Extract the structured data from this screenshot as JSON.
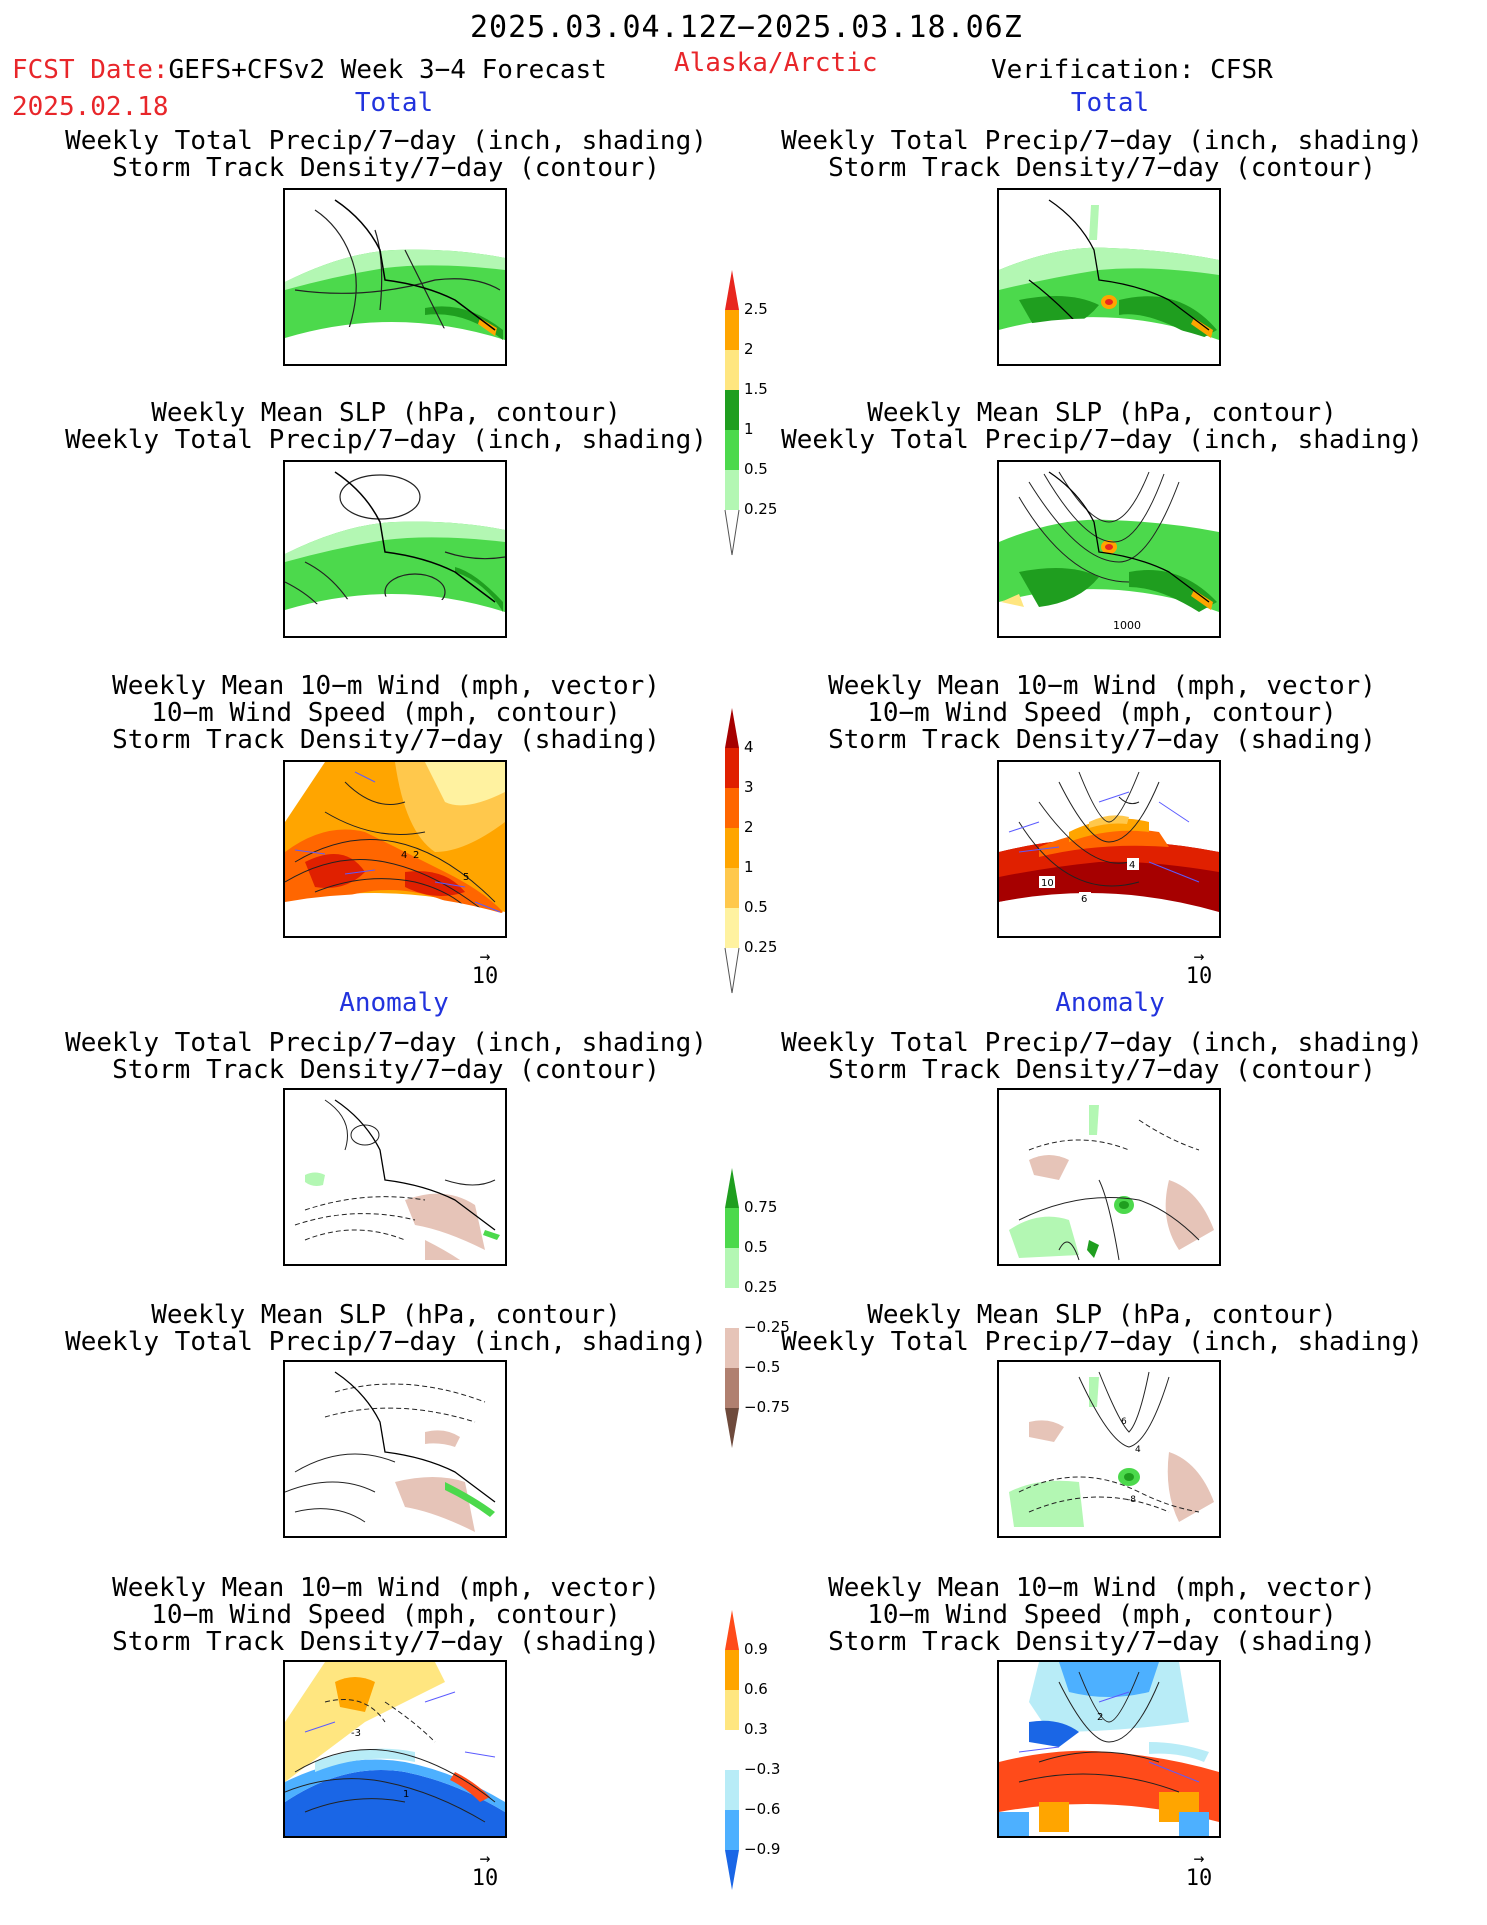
{
  "header": {
    "date_range": "2025.03.04.12Z−2025.03.18.06Z",
    "fcst_label": "FCST Date:",
    "fcst_date": "2025.02.18",
    "model": "GEFS+CFSv2 Week 3−4 Forecast",
    "region": "Alaska/Arctic",
    "verification": "Verification: CFSR"
  },
  "sections": {
    "total_left": "Total",
    "total_right": "Total",
    "anomaly_left": "Anomaly",
    "anomaly_right": "Anomaly"
  },
  "panel_titles": {
    "precip_storm": [
      "Weekly Total Precip/7−day (inch, shading)",
      "Storm Track Density/7−day (contour)"
    ],
    "slp_precip": [
      "Weekly Mean SLP (hPa, contour)",
      "Weekly Total Precip/7−day (inch, shading)"
    ],
    "wind_storm": [
      "Weekly Mean 10−m Wind (mph, vector)",
      "10−m Wind Speed (mph, contour)",
      "Storm Track Density/7−day (shading)"
    ]
  },
  "reference_vector": "10",
  "map_labels": {
    "slp_total_right": "1000",
    "wind_total_left": [
      "4",
      "2",
      "5"
    ],
    "wind_total_right": [
      "10",
      "4",
      "6"
    ],
    "slp_anom_right": [
      "6",
      "4",
      "-8"
    ],
    "wind_anom_left": [
      "-3",
      "1"
    ],
    "wind_anom_right": [
      "2"
    ]
  },
  "colorbars": {
    "precip_total": {
      "labels": [
        "2.5",
        "2",
        "1.5",
        "1",
        "0.5",
        "0.25"
      ],
      "colors": [
        "#e8261e",
        "#ffa500",
        "#ffe680",
        "#1f9e1f",
        "#4cd94c",
        "#b3f7b3"
      ]
    },
    "storm_total": {
      "labels": [
        "4",
        "3",
        "2",
        "1",
        "0.5",
        "0.25"
      ],
      "colors": [
        "#a60000",
        "#e02000",
        "#ff6600",
        "#ffa500",
        "#ffc84c",
        "#fff2a0"
      ]
    },
    "precip_anom": {
      "labels": [
        "0.75",
        "0.5",
        "0.25",
        "−0.25",
        "−0.5",
        "−0.75"
      ],
      "colors": [
        "#1f9e1f",
        "#4cd94c",
        "#b3f7b3",
        "#ffffff",
        "#e6c4b8",
        "#b08070",
        "#6e4a3c"
      ]
    },
    "storm_anom": {
      "labels": [
        "0.9",
        "0.6",
        "0.3",
        "−0.3",
        "−0.6",
        "−0.9"
      ],
      "colors": [
        "#ff4b1a",
        "#ffa500",
        "#ffe680",
        "#ffffff",
        "#b8ecf7",
        "#4db0ff",
        "#1a66e6"
      ]
    }
  }
}
